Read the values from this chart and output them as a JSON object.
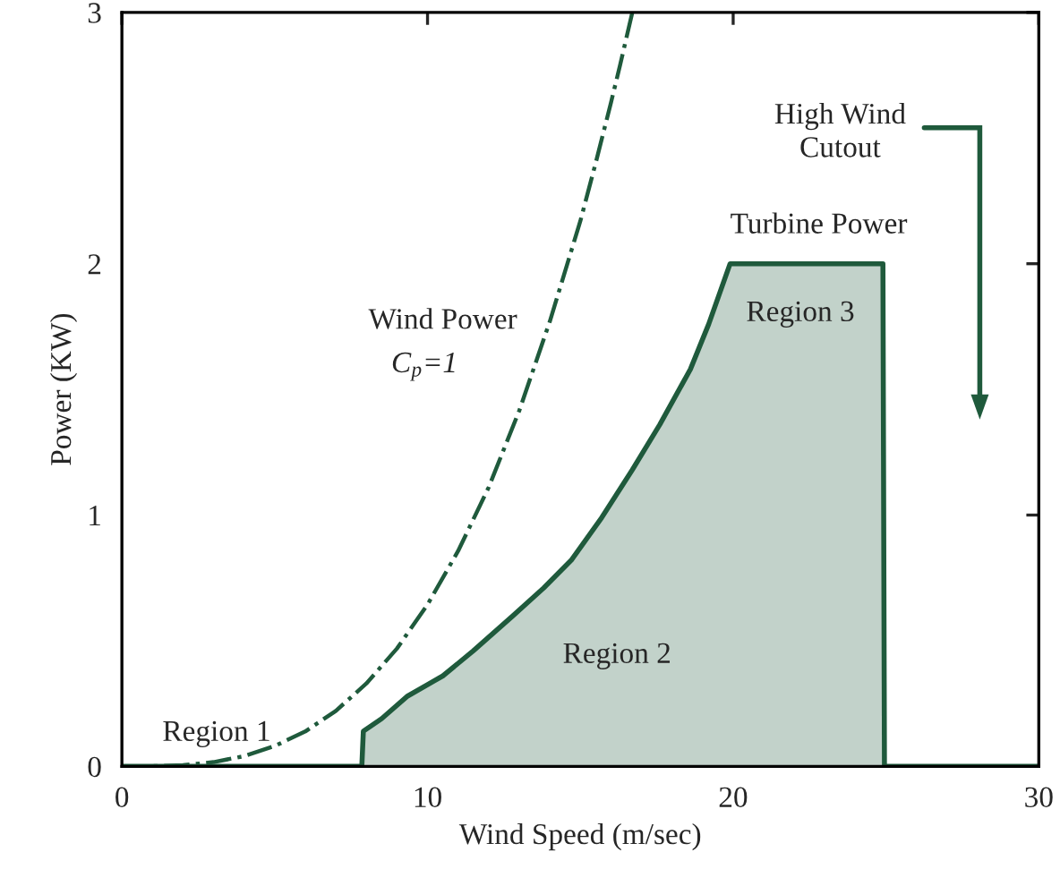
{
  "chart_data": {
    "type": "line",
    "xlabel": "Wind Speed (m/sec)",
    "ylabel": "Power (KW)",
    "xlim": [
      0,
      30
    ],
    "xticks": [
      0,
      10,
      20,
      30
    ],
    "ylim": [
      0,
      3
    ],
    "yticks": [
      0,
      1,
      2,
      3
    ],
    "grid": false,
    "legend": false,
    "series": [
      {
        "line_style": "dashed",
        "color": "#1f5a3c",
        "x": [
          0,
          1,
          2,
          3,
          4,
          5,
          6,
          7,
          8,
          9,
          10,
          11,
          12,
          13,
          14,
          15,
          15.5,
          16,
          16.3,
          16.7
        ],
        "values": [
          0,
          0.001,
          0.005,
          0.017,
          0.041,
          0.081,
          0.139,
          0.221,
          0.33,
          0.469,
          0.644,
          0.857,
          1.11,
          1.415,
          1.77,
          2.17,
          2.4,
          2.64,
          2.79,
          3.0
        ]
      },
      {
        "type": "area",
        "color": "#1f5a3c",
        "x": [
          0,
          7.85,
          7.9,
          8.5,
          9.35,
          10.5,
          11.5,
          12.8,
          13.8,
          14.7,
          15.7,
          16.7,
          17.6,
          18.6,
          19.2,
          19.9,
          24.9,
          24.95,
          30
        ],
        "values": [
          0,
          0,
          0.14,
          0.19,
          0.28,
          0.36,
          0.46,
          0.6,
          0.71,
          0.82,
          0.99,
          1.18,
          1.36,
          1.58,
          1.76,
          2.0,
          2.0,
          0,
          0
        ]
      }
    ],
    "annotations": [
      "Region 1",
      "Wind Power",
      "C$_{p}$=1",
      "Region 2",
      "Region 3",
      "Turbine Power",
      "High Wind\nCutout"
    ]
  }
}
